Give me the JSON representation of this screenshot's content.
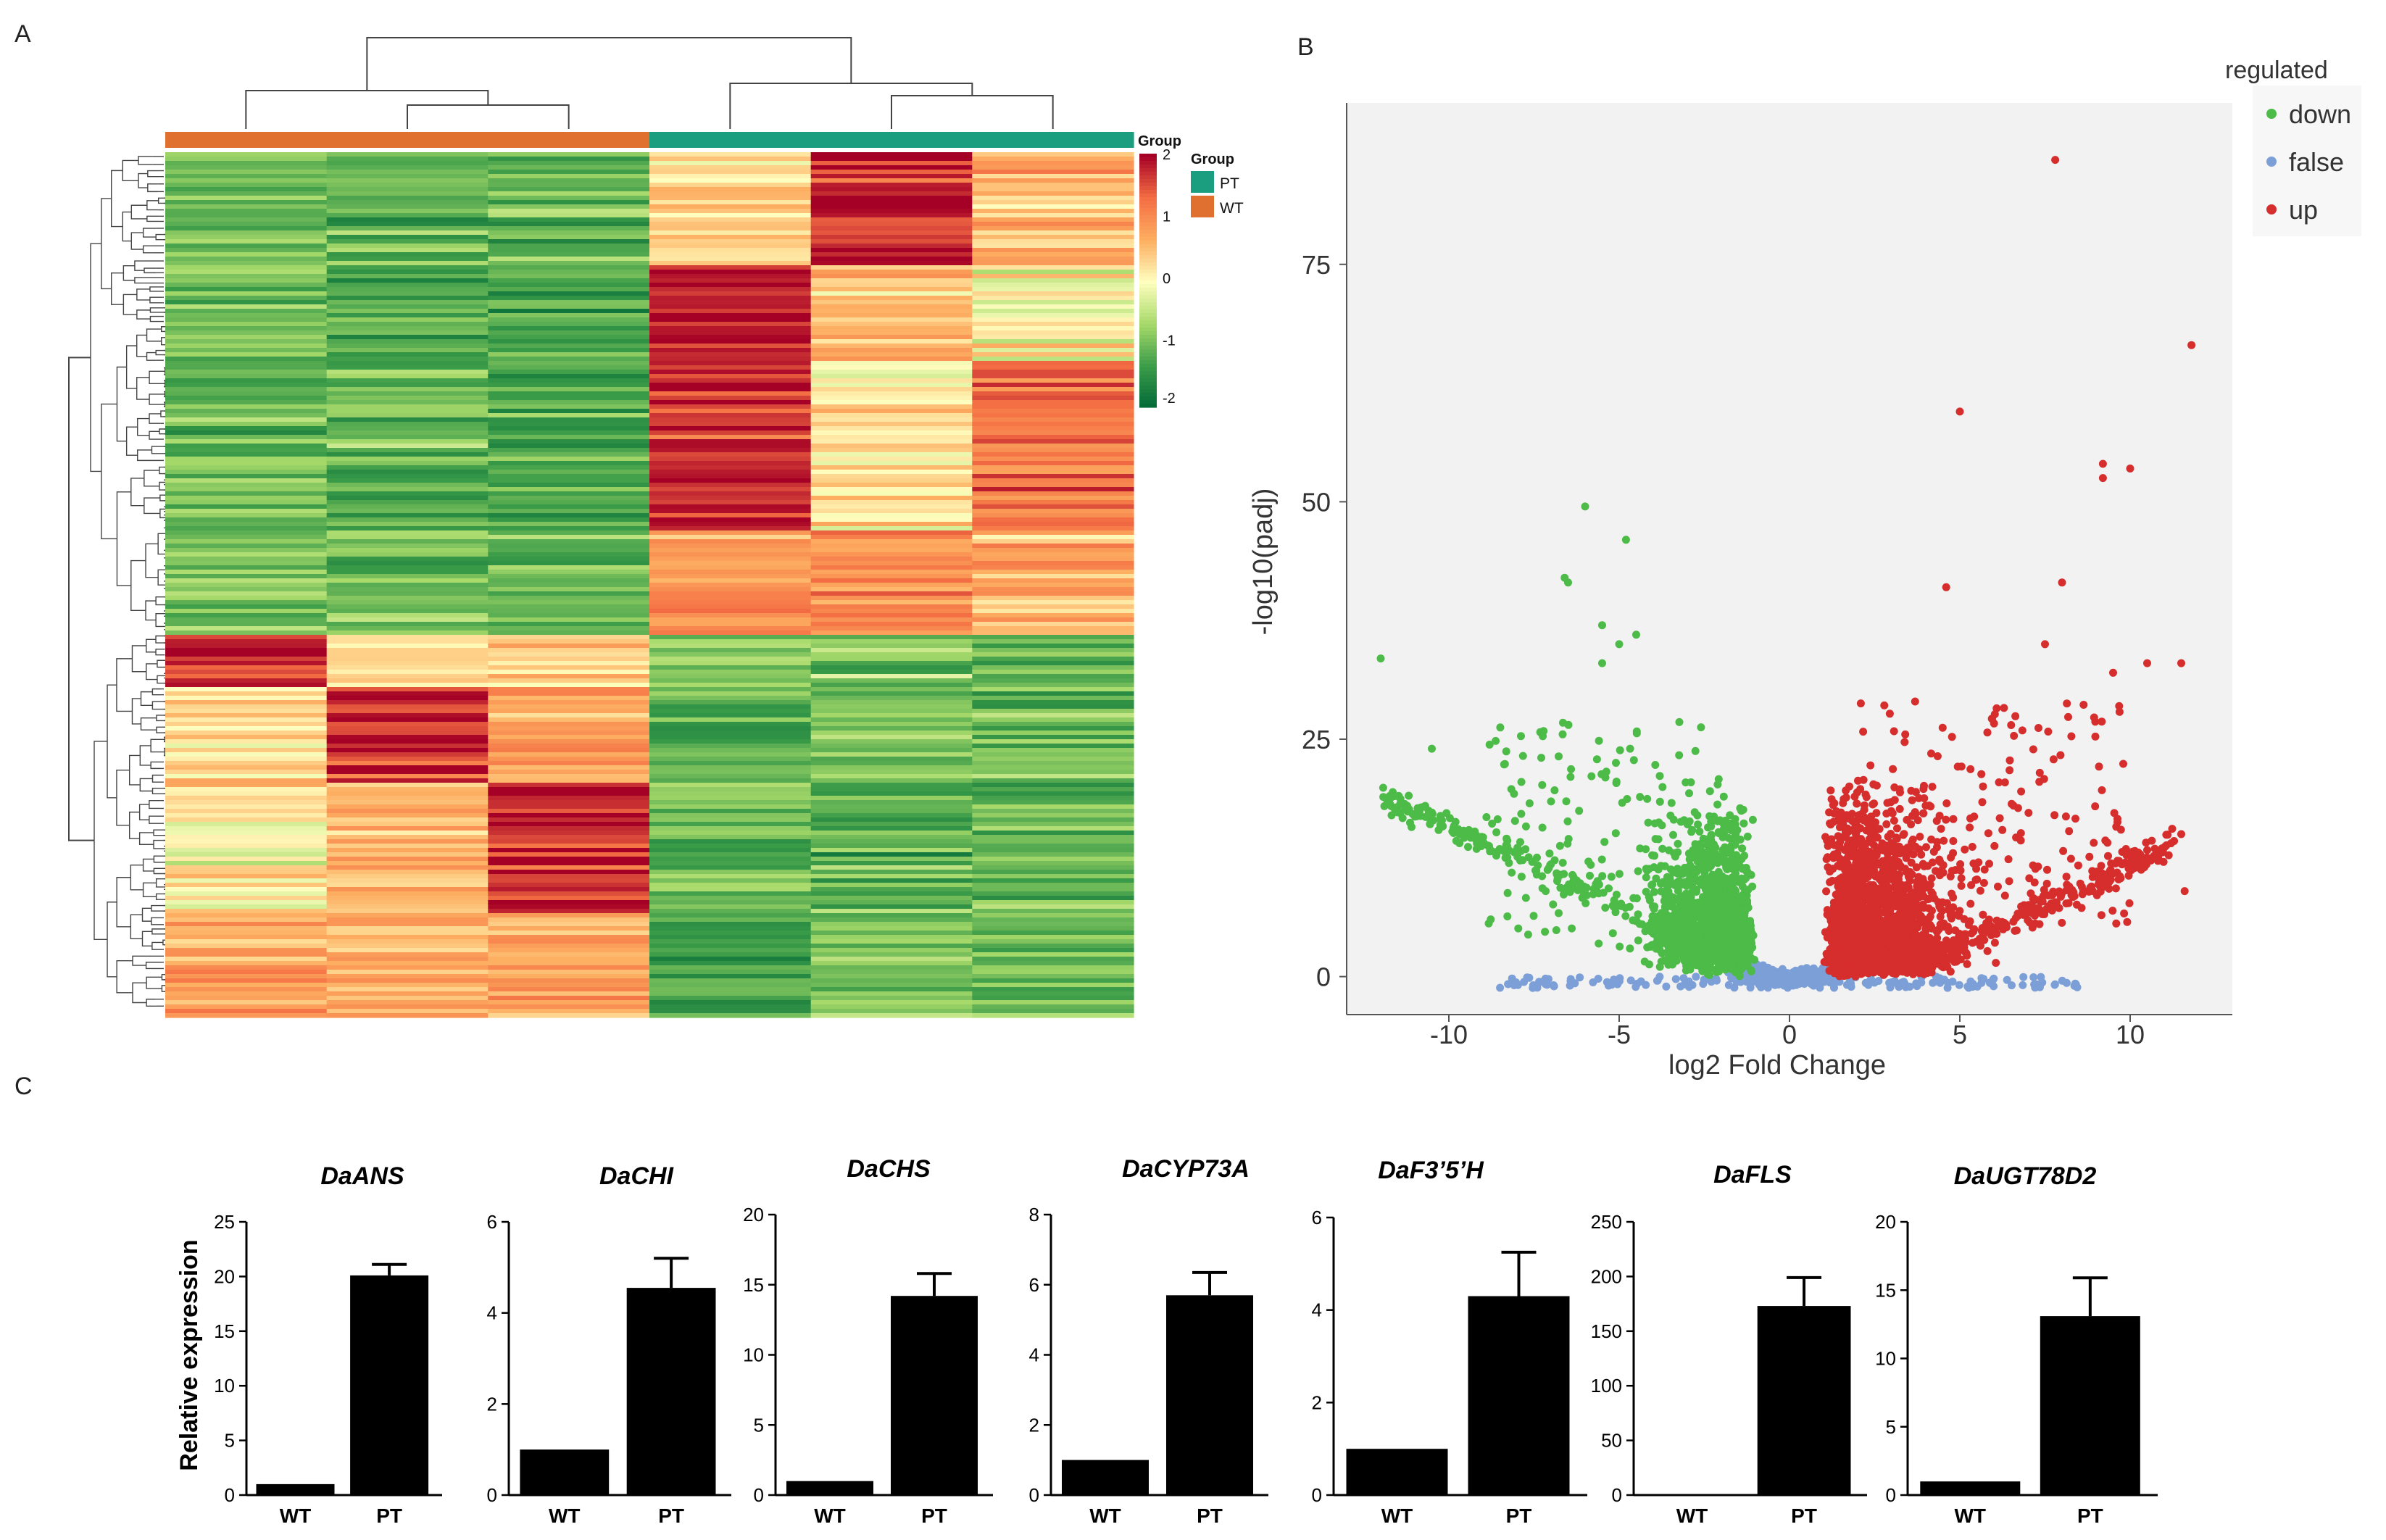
{
  "panel_labels": {
    "a": "A",
    "b": "B",
    "c": "C"
  },
  "colors": {
    "wt": "#e07030",
    "pt": "#1a9e7f",
    "down": "#4cbb47",
    "false": "#7b9fd6",
    "up": "#d62d2d",
    "heat": [
      "#006837",
      "#3a9b48",
      "#a6d96a",
      "#ffffbf",
      "#fdae61",
      "#f46d43",
      "#a50026"
    ]
  },
  "chart_data": [
    {
      "type": "heatmap",
      "panel": "A",
      "columns": [
        "WT",
        "WT",
        "WT",
        "PT",
        "PT",
        "PT"
      ],
      "column_groups": [
        "WT",
        "WT",
        "WT",
        "PT",
        "PT",
        "PT"
      ],
      "color_scale_title": "Group",
      "color_scale_ticks": [
        "2",
        "1",
        "0",
        "-1",
        "-2"
      ],
      "color_scale_range": [
        -2,
        2
      ],
      "legend_title": "Group",
      "legend": [
        {
          "label": "PT",
          "color": "#1a9e7f"
        },
        {
          "label": "WT",
          "color": "#e07030"
        }
      ],
      "row_blocks": [
        {
          "fraction": 0.13,
          "values": [
            -1.0,
            -1.1,
            -1.1,
            0.3,
            1.8,
            0.6
          ]
        },
        {
          "fraction": 0.11,
          "values": [
            -1.0,
            -1.2,
            -1.1,
            1.9,
            0.5,
            0.1
          ]
        },
        {
          "fraction": 0.2,
          "values": [
            -0.9,
            -1.1,
            -1.2,
            1.7,
            0.2,
            1.2
          ]
        },
        {
          "fraction": 0.12,
          "values": [
            -0.9,
            -1.0,
            -1.1,
            0.9,
            0.8,
            0.6
          ]
        },
        {
          "fraction": 0.06,
          "values": [
            1.8,
            0.3,
            0.4,
            -1.0,
            -0.9,
            -1.1
          ]
        },
        {
          "fraction": 0.11,
          "values": [
            0.2,
            1.7,
            0.9,
            -1.1,
            -0.9,
            -1.0
          ]
        },
        {
          "fraction": 0.15,
          "values": [
            0.1,
            0.6,
            1.8,
            -1.0,
            -1.1,
            -1.0
          ]
        },
        {
          "fraction": 0.12,
          "values": [
            0.8,
            0.7,
            0.9,
            -1.4,
            -0.9,
            -1.0
          ]
        }
      ]
    },
    {
      "type": "scatter",
      "panel": "B",
      "xlabel": "log2 Fold Change",
      "ylabel": "-log10(padj)",
      "xlim": [
        -13,
        13
      ],
      "ylim": [
        -4,
        92
      ],
      "xticks": [
        -10,
        -5,
        0,
        5,
        10
      ],
      "yticks": [
        0,
        25,
        50,
        75
      ],
      "legend_title": "regulated",
      "legend": [
        {
          "label": "down",
          "color": "#4cbb47"
        },
        {
          "label": "false",
          "color": "#7b9fd6"
        },
        {
          "label": "up",
          "color": "#d62d2d"
        }
      ],
      "outliers": {
        "down": [
          [
            -12,
            33.5
          ],
          [
            -6,
            49.5
          ],
          [
            -4.8,
            46
          ],
          [
            -6.6,
            42
          ],
          [
            -6.5,
            41.5
          ],
          [
            -10.5,
            24
          ],
          [
            -5.5,
            37
          ],
          [
            -4.5,
            36
          ],
          [
            -5.0,
            35
          ],
          [
            -5.5,
            33
          ]
        ],
        "up": [
          [
            7.8,
            86
          ],
          [
            11.8,
            66.5
          ],
          [
            5.0,
            59.5
          ],
          [
            9.2,
            54
          ],
          [
            10.0,
            53.5
          ],
          [
            9.2,
            52.5
          ],
          [
            4.6,
            41
          ],
          [
            8.0,
            41.5
          ],
          [
            7.5,
            35
          ],
          [
            11.5,
            33
          ],
          [
            10.5,
            33
          ],
          [
            9.5,
            32
          ],
          [
            11.5,
            15
          ],
          [
            11.6,
            9
          ]
        ]
      }
    },
    {
      "type": "bar",
      "panel": "C",
      "ylabel": "Relative expression",
      "categories": [
        "WT",
        "PT"
      ],
      "subplots": [
        {
          "title": "DaANS",
          "values": [
            1,
            20.1
          ],
          "errors": [
            0,
            1.0
          ],
          "ylim": [
            0,
            25
          ],
          "yticks": [
            0,
            5,
            10,
            15,
            20,
            25
          ]
        },
        {
          "title": "DaCHI",
          "values": [
            1,
            4.55
          ],
          "errors": [
            0,
            0.65
          ],
          "ylim": [
            0,
            6
          ],
          "yticks": [
            0,
            2,
            4,
            6
          ]
        },
        {
          "title": "DaCHS",
          "values": [
            1,
            14.2
          ],
          "errors": [
            0,
            1.6
          ],
          "ylim": [
            0,
            20
          ],
          "yticks": [
            0,
            5,
            10,
            15,
            20
          ]
        },
        {
          "title": "DaCYP73A",
          "values": [
            1,
            5.7
          ],
          "errors": [
            0,
            0.65
          ],
          "ylim": [
            0,
            8
          ],
          "yticks": [
            0,
            2,
            4,
            6,
            8
          ]
        },
        {
          "title": "DaF3’5’H",
          "values": [
            1,
            4.3
          ],
          "errors": [
            0,
            0.95
          ],
          "ylim": [
            0,
            6
          ],
          "yticks": [
            0,
            2,
            4,
            6
          ]
        },
        {
          "title": "DaFLS",
          "values": [
            1,
            173
          ],
          "errors": [
            0,
            26
          ],
          "ylim": [
            0,
            250
          ],
          "yticks": [
            0,
            50,
            100,
            150,
            200,
            250
          ]
        },
        {
          "title": "DaUGT78D2",
          "values": [
            1,
            13.1
          ],
          "errors": [
            0,
            2.8
          ],
          "ylim": [
            0,
            20
          ],
          "yticks": [
            0,
            5,
            10,
            15,
            20
          ]
        }
      ]
    }
  ]
}
